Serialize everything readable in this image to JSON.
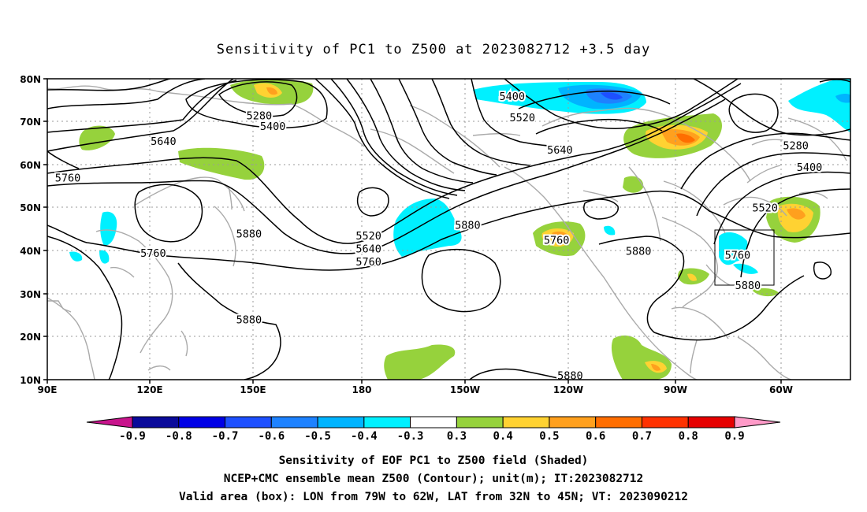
{
  "title": "Sensitivity of PC1 to Z500 at 2023082712 +3.5 day",
  "map": {
    "lat_ticks": [
      "80N",
      "70N",
      "60N",
      "50N",
      "40N",
      "30N",
      "20N",
      "10N"
    ],
    "lon_ticks": [
      "90E",
      "120E",
      "150E",
      "180",
      "150W",
      "120W",
      "90W",
      "60W"
    ],
    "lon_range": [
      90,
      325
    ],
    "lat_range": [
      10,
      80
    ],
    "grid": true,
    "colors": {
      "frame": "#000000",
      "coastline": "#aaaaaa",
      "contour": "#000000"
    }
  },
  "contour_labels": [
    {
      "text": "5280",
      "lon": 152,
      "lat": 71.5
    },
    {
      "text": "5400",
      "lon": 156,
      "lat": 69
    },
    {
      "text": "5640",
      "lon": 124,
      "lat": 65.5
    },
    {
      "text": "5760",
      "lon": 96,
      "lat": 57
    },
    {
      "text": "5880",
      "lon": 149,
      "lat": 44
    },
    {
      "text": "5760",
      "lon": 121,
      "lat": 39.5
    },
    {
      "text": "5880",
      "lon": 149,
      "lat": 24
    },
    {
      "text": "5400",
      "lon": 226,
      "lat": 76
    },
    {
      "text": "5520",
      "lon": 229,
      "lat": 71
    },
    {
      "text": "5640",
      "lon": 240,
      "lat": 63.5
    },
    {
      "text": "5520",
      "lon": 184,
      "lat": 43.5
    },
    {
      "text": "5640",
      "lon": 184,
      "lat": 40.5
    },
    {
      "text": "5760",
      "lon": 184,
      "lat": 37.5
    },
    {
      "text": "5880",
      "lon": 213,
      "lat": 46
    },
    {
      "text": "5760",
      "lon": 239,
      "lat": 42.5
    },
    {
      "text": "5880",
      "lon": 263,
      "lat": 40
    },
    {
      "text": "5280",
      "lon": 309,
      "lat": 64.5
    },
    {
      "text": "5400",
      "lon": 313,
      "lat": 59.5
    },
    {
      "text": "5520",
      "lon": 300,
      "lat": 50
    },
    {
      "text": "5760",
      "lon": 292,
      "lat": 39
    },
    {
      "text": "5880",
      "lon": 295,
      "lat": 32
    },
    {
      "text": "5880",
      "lon": 243,
      "lat": 11
    }
  ],
  "valid_box": {
    "lon_min": 281,
    "lon_max": 298,
    "lat_min": 32,
    "lat_max": 45
  },
  "colorbar": {
    "labels": [
      "-0.9",
      "-0.8",
      "-0.7",
      "-0.6",
      "-0.5",
      "-0.4",
      "-0.3",
      "0.3",
      "0.4",
      "0.5",
      "0.6",
      "0.7",
      "0.8",
      "0.9"
    ],
    "colors": [
      "#0a0a9a",
      "#0000e6",
      "#1e50ff",
      "#1e82ff",
      "#00b4ff",
      "#00f0ff",
      "#ffffff",
      "#96d23c",
      "#ffd232",
      "#ffa01e",
      "#ff6e00",
      "#ff3200",
      "#e60000"
    ],
    "low_extend_color": "#c8148c",
    "high_extend_color": "#ff9ac8"
  },
  "footer": {
    "line1": "Sensitivity of EOF PC1 to Z500 field (Shaded)",
    "line2": "NCEP+CMC ensemble mean Z500 (Contour); unit(m); IT:2023082712",
    "line3": "Valid area (box): LON from 79W to 62W, LAT from 32N to 45N; VT: 2023090212"
  }
}
